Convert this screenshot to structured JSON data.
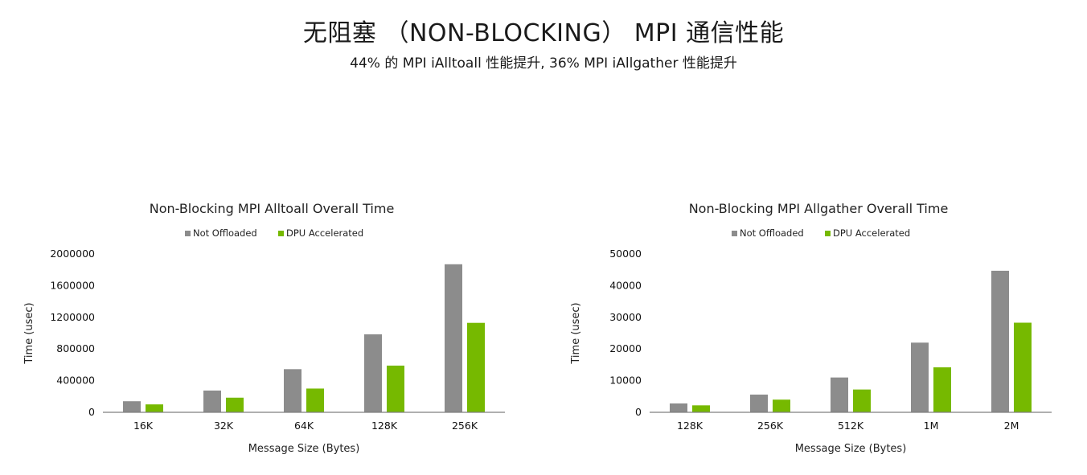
{
  "header": {
    "title": "无阻塞 （NON-BLOCKING） MPI 通信性能",
    "subtitle": "44% 的 MPI iAlltoall 性能提升, 36% MPI iAllgather 性能提升"
  },
  "colors": {
    "not_offloaded": "#8c8c8c",
    "dpu_accelerated": "#76b900",
    "axis": "#808080"
  },
  "chart_data": [
    {
      "type": "bar",
      "title": "Non-Blocking MPI Alltoall Overall Time",
      "xlabel": "Message Size (Bytes)",
      "ylabel": "Time (usec)",
      "categories": [
        "16K",
        "32K",
        "64K",
        "128K",
        "256K"
      ],
      "ylim": [
        0,
        2000000
      ],
      "yticks": [
        "0",
        "400000",
        "800000",
        "1200000",
        "1600000",
        "2000000"
      ],
      "grid": false,
      "legend_position": "top",
      "series": [
        {
          "name": "Not Offloaded",
          "values": [
            140000,
            275000,
            545000,
            985000,
            1870000
          ]
        },
        {
          "name": "DPU Accelerated",
          "values": [
            100000,
            185000,
            300000,
            590000,
            1130000
          ]
        }
      ]
    },
    {
      "type": "bar",
      "title": "Non-Blocking MPI Allgather Overall Time",
      "xlabel": "Message Size (Bytes)",
      "ylabel": "Time (usec)",
      "categories": [
        "128K",
        "256K",
        "512K",
        "1M",
        "2M"
      ],
      "ylim": [
        0,
        50000
      ],
      "yticks": [
        "0",
        "10000",
        "20000",
        "30000",
        "40000",
        "50000"
      ],
      "grid": false,
      "legend_position": "top",
      "series": [
        {
          "name": "Not Offloaded",
          "values": [
            2800,
            5600,
            11000,
            22000,
            44700
          ]
        },
        {
          "name": "DPU Accelerated",
          "values": [
            2200,
            4000,
            7200,
            14200,
            28300
          ]
        }
      ]
    }
  ]
}
